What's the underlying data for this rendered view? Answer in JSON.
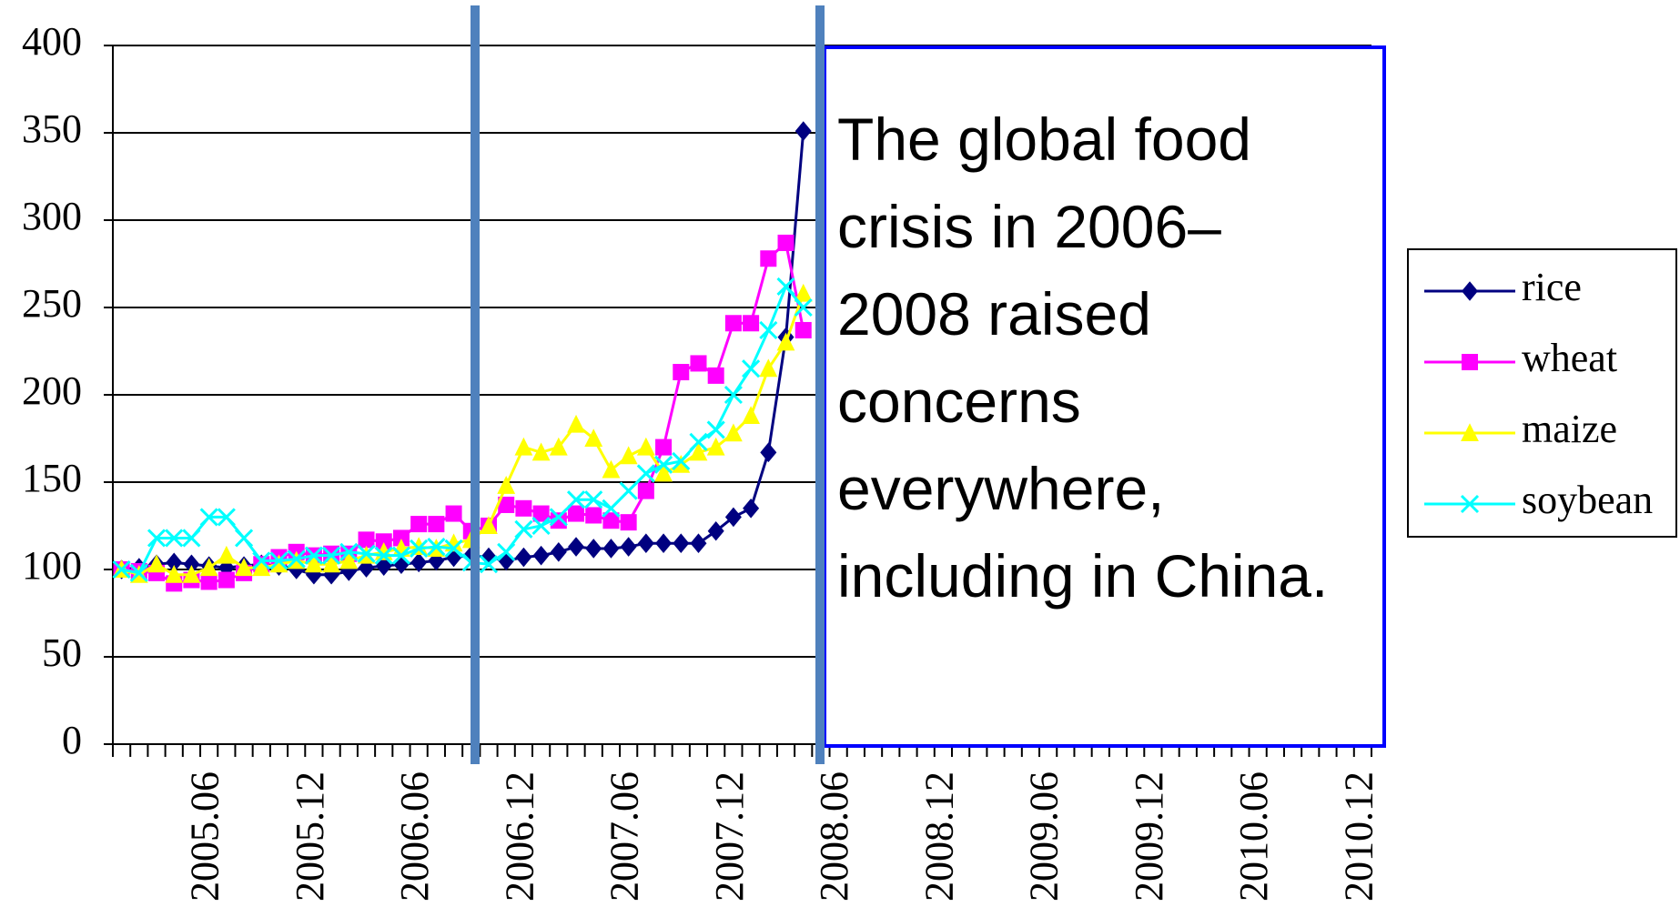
{
  "chart_data": {
    "type": "line",
    "annotation": "The global food crisis in 2006–2008 raised concerns everywhere, including in China.",
    "categories": [
      null,
      null,
      null,
      null,
      null,
      "2005.06",
      null,
      null,
      null,
      null,
      null,
      "2005.12",
      null,
      null,
      null,
      null,
      null,
      "2006.06",
      null,
      null,
      null,
      null,
      null,
      "2006.12",
      null,
      null,
      null,
      null,
      null,
      "2007.06",
      null,
      null,
      null,
      null,
      null,
      "2007.12",
      null,
      null,
      null,
      null,
      null,
      "2008.06",
      null,
      null,
      null,
      null,
      null,
      "2008.12",
      null,
      null,
      null,
      null,
      null,
      "2009.06",
      null,
      null,
      null,
      null,
      null,
      "2009.12",
      null,
      null,
      null,
      null,
      null,
      "2010.06",
      null,
      null,
      null,
      null,
      null,
      "2010.12"
    ],
    "series": [
      {
        "name": "rice",
        "color": "#000080",
        "marker": "diamond",
        "values": [
          100,
          101,
          103,
          104,
          103,
          102,
          101,
          102,
          103,
          102,
          100,
          97,
          97,
          99,
          101,
          102,
          103,
          104,
          105,
          107,
          108,
          107,
          105,
          107,
          108,
          110,
          113,
          112,
          112,
          113,
          115,
          115,
          115,
          115,
          122,
          130,
          135,
          167,
          233,
          351,
          null,
          null,
          null,
          null,
          null,
          null,
          null,
          null,
          null,
          null,
          null,
          null,
          null,
          null,
          null,
          null,
          null,
          null,
          null,
          null,
          null,
          null,
          null,
          null,
          null,
          null,
          null,
          null,
          null,
          null,
          null,
          null
        ]
      },
      {
        "name": "wheat",
        "color": "#ff00ff",
        "marker": "square",
        "values": [
          100,
          99,
          98,
          92,
          94,
          93,
          94,
          98,
          103,
          107,
          110,
          108,
          109,
          109,
          117,
          116,
          118,
          126,
          126,
          132,
          122,
          125,
          137,
          135,
          132,
          128,
          132,
          131,
          128,
          127,
          145,
          170,
          213,
          218,
          211,
          241,
          241,
          278,
          287,
          237,
          null,
          null,
          null,
          null,
          null,
          null,
          null,
          null,
          null,
          null,
          null,
          null,
          null,
          null,
          null,
          null,
          null,
          null,
          null,
          null,
          null,
          null,
          null,
          null,
          null,
          null,
          null,
          null,
          null,
          null,
          null,
          null
        ]
      },
      {
        "name": "maize",
        "color": "#ffff00",
        "marker": "triangle",
        "values": [
          100,
          97,
          103,
          97,
          97,
          101,
          108,
          101,
          101,
          103,
          105,
          103,
          103,
          105,
          108,
          110,
          112,
          113,
          112,
          115,
          117,
          125,
          148,
          170,
          167,
          170,
          183,
          175,
          157,
          165,
          170,
          155,
          160,
          167,
          170,
          178,
          188,
          215,
          230,
          258,
          null,
          null,
          null,
          null,
          null,
          null,
          null,
          null,
          null,
          null,
          null,
          null,
          null,
          null,
          null,
          null,
          null,
          null,
          null,
          null,
          null,
          null,
          null,
          null,
          null,
          null,
          null,
          null,
          null,
          null,
          null,
          null
        ]
      },
      {
        "name": "soybean",
        "color": "#00ffff",
        "marker": "x",
        "values": [
          100,
          98,
          118,
          118,
          118,
          130,
          130,
          118,
          105,
          105,
          106,
          108,
          108,
          110,
          109,
          108,
          108,
          112,
          113,
          112,
          104,
          103,
          110,
          123,
          125,
          130,
          140,
          140,
          135,
          145,
          155,
          160,
          162,
          173,
          180,
          200,
          215,
          237,
          262,
          250,
          null,
          null,
          null,
          null,
          null,
          null,
          null,
          null,
          null,
          null,
          null,
          null,
          null,
          null,
          null,
          null,
          null,
          null,
          null,
          null,
          null,
          null,
          null,
          null,
          null,
          null,
          null,
          null,
          null,
          null,
          null,
          null
        ]
      }
    ],
    "ylim": [
      0,
      400
    ],
    "yticks": [
      0,
      50,
      100,
      150,
      200,
      250,
      300,
      350,
      400
    ],
    "grid": true
  }
}
